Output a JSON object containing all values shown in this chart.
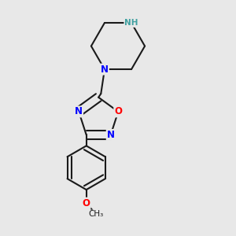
{
  "background_color": "#e8e8e8",
  "bond_color": "#1a1a1a",
  "atom_colors": {
    "N": "#0000ff",
    "O": "#ff0000",
    "NH": "#40a0a0",
    "C": "#1a1a1a"
  },
  "line_width": 1.5,
  "font_size": 8.5,
  "font_size_small": 7.5
}
